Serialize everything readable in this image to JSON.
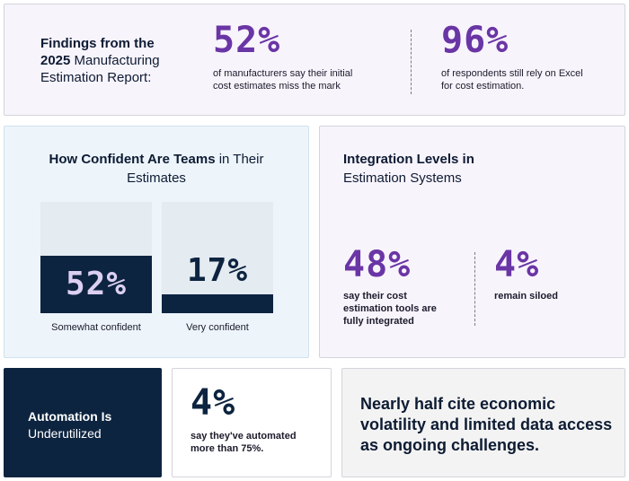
{
  "top": {
    "title_bold_1": "Findings from the",
    "title_bold_2": "2025",
    "title_rest_1": " Manufacturing",
    "title_rest_2": "Estimation Report:",
    "stat1_value": "52%",
    "stat1_text_1": "of manufacturers say their initial",
    "stat1_text_2": "cost estimates miss the mark",
    "stat2_value": "96%",
    "stat2_text_1": "of respondents still rely on Excel",
    "stat2_text_2": "for cost estimation."
  },
  "confidence": {
    "title_bold": "How Confident Are Teams",
    "title_rest_1": " in Their",
    "title_rest_2": "Estimates",
    "bars": [
      {
        "label": "Somewhat confident",
        "value_text": "52%",
        "fraction": 0.52
      },
      {
        "label": "Very confident",
        "value_text": "17%",
        "fraction": 0.17
      }
    ]
  },
  "integration": {
    "title_bold": "Integration Levels in",
    "title_rest": "Estimation Systems",
    "stat1_value": "48%",
    "stat1_text_1": "say their cost",
    "stat1_text_2": "estimation tools are",
    "stat1_text_3": "fully integrated",
    "stat2_value": "4%",
    "stat2_text": "remain siloed"
  },
  "automation": {
    "title_bold": "Automation Is",
    "title_rest": "Underutilized"
  },
  "automated": {
    "value": "4%",
    "text_1": "say they've automated",
    "text_2": "more than 75%."
  },
  "challenge": {
    "text": "Nearly half cite economic volatility and limited data access as ongoing challenges."
  },
  "colors": {
    "purple_accent": "#6a35a5",
    "navy": "#0d2440",
    "lavender_bg": "#f8f4fc",
    "light_blue_bg": "#edf5fb",
    "bar_light": "#dcd0f2"
  }
}
